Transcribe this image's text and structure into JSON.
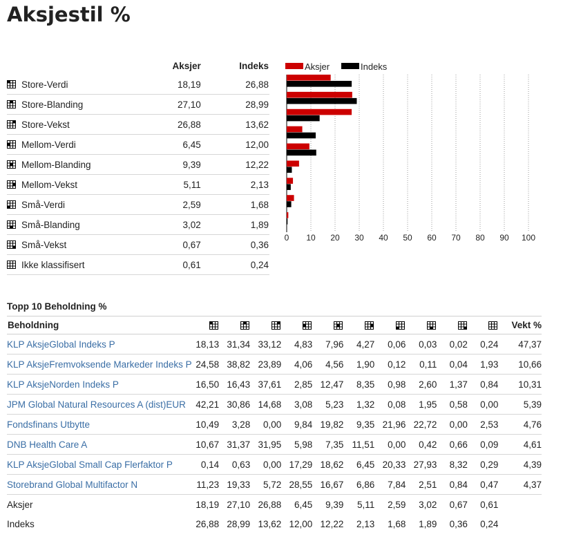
{
  "title": "Aksjestil %",
  "style_table": {
    "header": {
      "col1": "Aksjer",
      "col2": "Indeks"
    },
    "rows": [
      {
        "label": "Store-Verdi",
        "aksjer": "18,19",
        "indeks": "26,88",
        "cell": 0
      },
      {
        "label": "Store-Blanding",
        "aksjer": "27,10",
        "indeks": "28,99",
        "cell": 1
      },
      {
        "label": "Store-Vekst",
        "aksjer": "26,88",
        "indeks": "13,62",
        "cell": 2
      },
      {
        "label": "Mellom-Verdi",
        "aksjer": "6,45",
        "indeks": "12,00",
        "cell": 3
      },
      {
        "label": "Mellom-Blanding",
        "aksjer": "9,39",
        "indeks": "12,22",
        "cell": 4
      },
      {
        "label": "Mellom-Vekst",
        "aksjer": "5,11",
        "indeks": "2,13",
        "cell": 5
      },
      {
        "label": "Små-Verdi",
        "aksjer": "2,59",
        "indeks": "1,68",
        "cell": 6
      },
      {
        "label": "Små-Blanding",
        "aksjer": "3,02",
        "indeks": "1,89",
        "cell": 7
      },
      {
        "label": "Små-Vekst",
        "aksjer": "0,67",
        "indeks": "0,36",
        "cell": 8
      },
      {
        "label": "Ikke klassifisert",
        "aksjer": "0,61",
        "indeks": "0,24",
        "cell": -1
      }
    ]
  },
  "chart_data": {
    "type": "bar",
    "orientation": "horizontal",
    "categories": [
      "Store-Verdi",
      "Store-Blanding",
      "Store-Vekst",
      "Mellom-Verdi",
      "Mellom-Blanding",
      "Mellom-Vekst",
      "Små-Verdi",
      "Små-Blanding",
      "Små-Vekst"
    ],
    "series": [
      {
        "name": "Aksjer",
        "color": "#cc0000",
        "values": [
          18.19,
          27.1,
          26.88,
          6.45,
          9.39,
          5.11,
          2.59,
          3.02,
          0.67
        ]
      },
      {
        "name": "Indeks",
        "color": "#000000",
        "values": [
          26.88,
          28.99,
          13.62,
          12.0,
          12.22,
          2.13,
          1.68,
          1.89,
          0.36
        ]
      }
    ],
    "xlim": [
      0,
      100
    ],
    "xticks": [
      0,
      10,
      20,
      30,
      40,
      50,
      60,
      70,
      80,
      90,
      100
    ],
    "grid": "vertical dotted",
    "legend": "top-left"
  },
  "holdings": {
    "title": "Topp 10 Beholdning %",
    "header_name": "Beholdning",
    "header_weight": "Vekt %",
    "rows": [
      {
        "name": "KLP AksjeGlobal Indeks P",
        "vals": [
          "18,13",
          "31,34",
          "33,12",
          "4,83",
          "7,96",
          "4,27",
          "0,06",
          "0,03",
          "0,02",
          "0,24"
        ],
        "weight": "47,37"
      },
      {
        "name": "KLP AksjeFremvoksende Markeder Indeks P",
        "vals": [
          "24,58",
          "38,82",
          "23,89",
          "4,06",
          "4,56",
          "1,90",
          "0,12",
          "0,11",
          "0,04",
          "1,93"
        ],
        "weight": "10,66"
      },
      {
        "name": "KLP AksjeNorden Indeks P",
        "vals": [
          "16,50",
          "16,43",
          "37,61",
          "2,85",
          "12,47",
          "8,35",
          "0,98",
          "2,60",
          "1,37",
          "0,84"
        ],
        "weight": "10,31"
      },
      {
        "name": "JPM Global Natural Resources A (dist)EUR",
        "vals": [
          "42,21",
          "30,86",
          "14,68",
          "3,08",
          "5,23",
          "1,32",
          "0,08",
          "1,95",
          "0,58",
          "0,00"
        ],
        "weight": "5,39"
      },
      {
        "name": "Fondsfinans Utbytte",
        "vals": [
          "10,49",
          "3,28",
          "0,00",
          "9,84",
          "19,82",
          "9,35",
          "21,96",
          "22,72",
          "0,00",
          "2,53"
        ],
        "weight": "4,76"
      },
      {
        "name": "DNB Health Care A",
        "vals": [
          "10,67",
          "31,37",
          "31,95",
          "5,98",
          "7,35",
          "11,51",
          "0,00",
          "0,42",
          "0,66",
          "0,09"
        ],
        "weight": "4,61"
      },
      {
        "name": "KLP AksjeGlobal Small Cap Flerfaktor P",
        "vals": [
          "0,14",
          "0,63",
          "0,00",
          "17,29",
          "18,62",
          "6,45",
          "20,33",
          "27,93",
          "8,32",
          "0,29"
        ],
        "weight": "4,39"
      },
      {
        "name": "Storebrand Global Multifactor N",
        "vals": [
          "11,23",
          "19,33",
          "5,72",
          "28,55",
          "16,67",
          "6,86",
          "7,84",
          "2,51",
          "0,84",
          "0,47"
        ],
        "weight": "4,37"
      }
    ],
    "summary": [
      {
        "name": "Aksjer",
        "vals": [
          "18,19",
          "27,10",
          "26,88",
          "6,45",
          "9,39",
          "5,11",
          "2,59",
          "3,02",
          "0,67",
          "0,61"
        ]
      },
      {
        "name": "Indeks",
        "vals": [
          "26,88",
          "28,99",
          "13,62",
          "12,00",
          "12,22",
          "2,13",
          "1,68",
          "1,89",
          "0,36",
          "0,24"
        ]
      }
    ],
    "icon_cells": [
      0,
      1,
      2,
      3,
      4,
      5,
      6,
      7,
      8,
      -1
    ]
  }
}
